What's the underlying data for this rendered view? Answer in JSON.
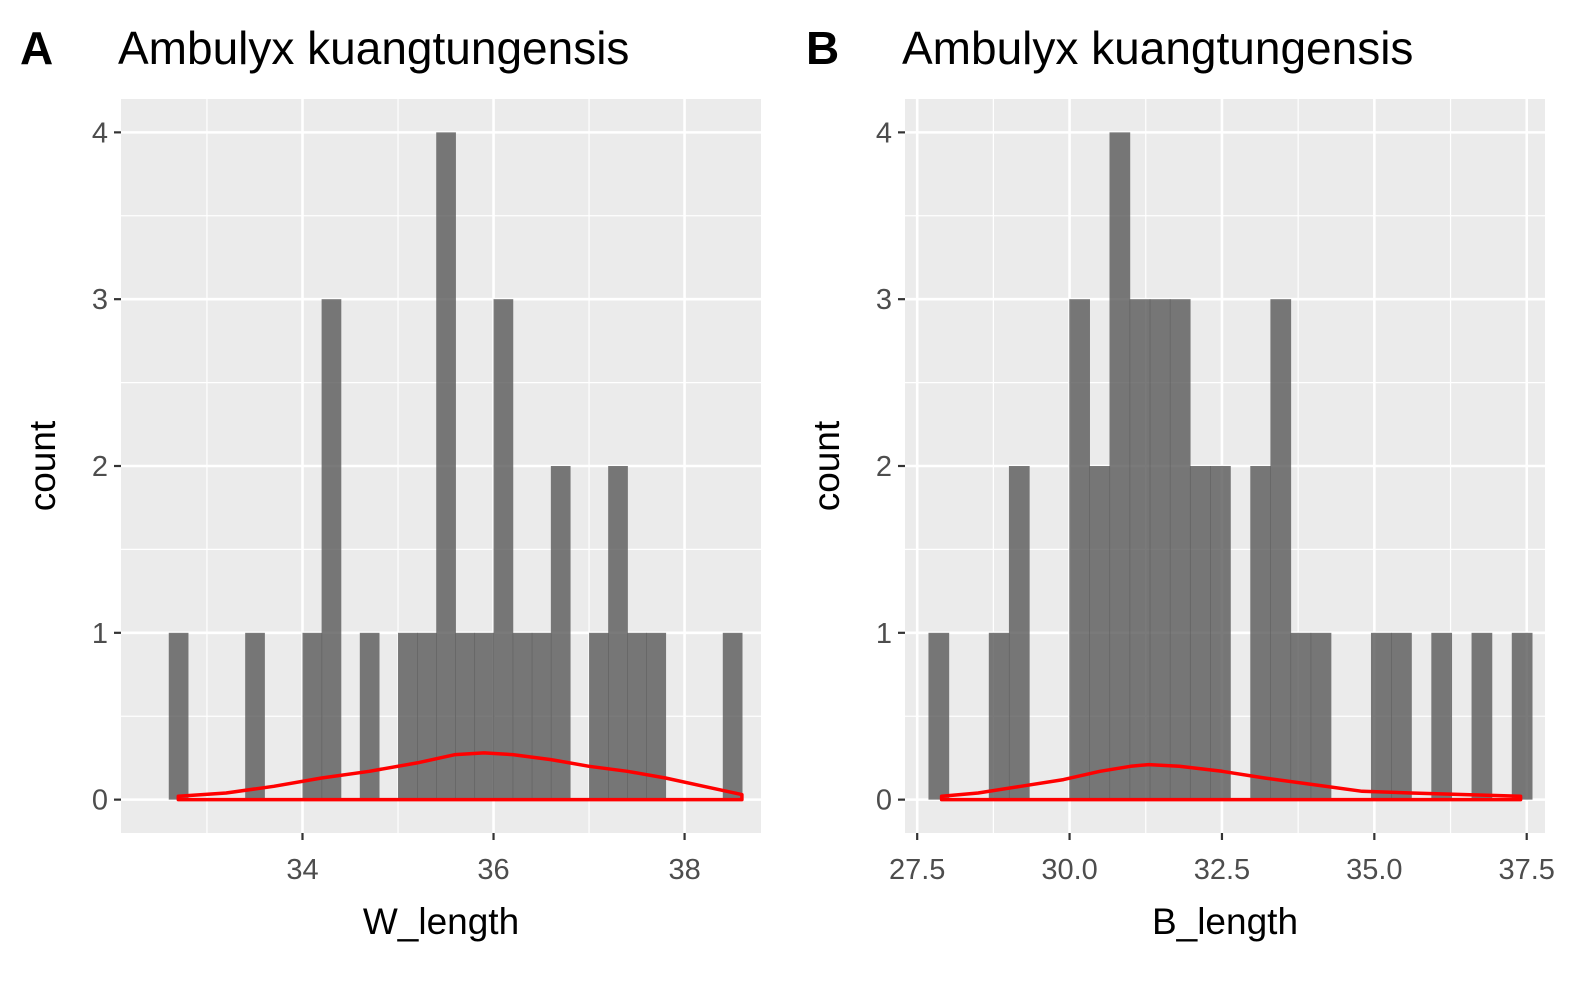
{
  "chart_data": [
    {
      "type": "bar",
      "panel_tag": "A",
      "title": "Ambulyx kuangtungensis",
      "xlabel": "W_length",
      "ylabel": "count",
      "xlim": [
        32.1,
        38.8
      ],
      "ylim": [
        -0.2,
        4.2
      ],
      "x_ticks": [
        34,
        36,
        38
      ],
      "x_tick_labels": [
        "34",
        "36",
        "38"
      ],
      "y_ticks": [
        0,
        1,
        2,
        3,
        4
      ],
      "y_tick_labels": [
        "0",
        "1",
        "2",
        "3",
        "4"
      ],
      "grid": true,
      "bin_width": 0.2,
      "bin_centers": [
        32.7,
        33.5,
        34.1,
        34.3,
        34.7,
        35.1,
        35.3,
        35.5,
        35.7,
        35.9,
        36.1,
        36.3,
        36.5,
        36.7,
        37.1,
        37.3,
        37.5,
        37.7,
        38.5
      ],
      "counts": [
        1,
        1,
        1,
        3,
        1,
        1,
        1,
        4,
        1,
        1,
        3,
        1,
        1,
        2,
        1,
        2,
        1,
        1,
        1
      ],
      "bar_color": "#595959",
      "density_color": "#ff0000",
      "density": {
        "x": [
          32.7,
          33.2,
          33.7,
          34.2,
          34.7,
          35.2,
          35.6,
          35.9,
          36.2,
          36.6,
          37.0,
          37.4,
          37.8,
          38.2,
          38.6
        ],
        "y": [
          0.02,
          0.04,
          0.08,
          0.13,
          0.17,
          0.22,
          0.27,
          0.28,
          0.27,
          0.24,
          0.2,
          0.17,
          0.13,
          0.08,
          0.03
        ]
      }
    },
    {
      "type": "bar",
      "panel_tag": "B",
      "title": "Ambulyx kuangtungensis",
      "xlabel": "B_length",
      "ylabel": "count",
      "xlim": [
        27.3,
        37.8
      ],
      "ylim": [
        -0.2,
        4.2
      ],
      "x_ticks": [
        27.5,
        30.0,
        32.5,
        35.0,
        37.5
      ],
      "x_tick_labels": [
        "27.5",
        "30.0",
        "32.5",
        "35.0",
        "37.5"
      ],
      "y_ticks": [
        0,
        1,
        2,
        3,
        4
      ],
      "y_tick_labels": [
        "0",
        "1",
        "2",
        "3",
        "4"
      ],
      "grid": true,
      "bin_width": 0.33,
      "bin_centers": [
        27.85,
        28.84,
        29.17,
        30.16,
        30.49,
        30.82,
        31.15,
        31.48,
        31.81,
        32.14,
        32.47,
        33.13,
        33.46,
        33.79,
        34.12,
        35.11,
        35.44,
        36.1,
        36.76,
        37.42
      ],
      "counts": [
        1,
        1,
        2,
        3,
        2,
        4,
        3,
        3,
        3,
        2,
        2,
        2,
        3,
        1,
        1,
        1,
        1,
        1,
        1,
        1
      ],
      "bar_color": "#595959",
      "density_color": "#ff0000",
      "density": {
        "x": [
          27.9,
          28.5,
          29.2,
          29.9,
          30.5,
          31.0,
          31.3,
          31.8,
          32.5,
          33.2,
          34.0,
          34.8,
          35.6,
          36.5,
          37.4
        ],
        "y": [
          0.02,
          0.04,
          0.08,
          0.12,
          0.17,
          0.2,
          0.21,
          0.2,
          0.17,
          0.13,
          0.09,
          0.05,
          0.04,
          0.03,
          0.02
        ]
      }
    }
  ]
}
